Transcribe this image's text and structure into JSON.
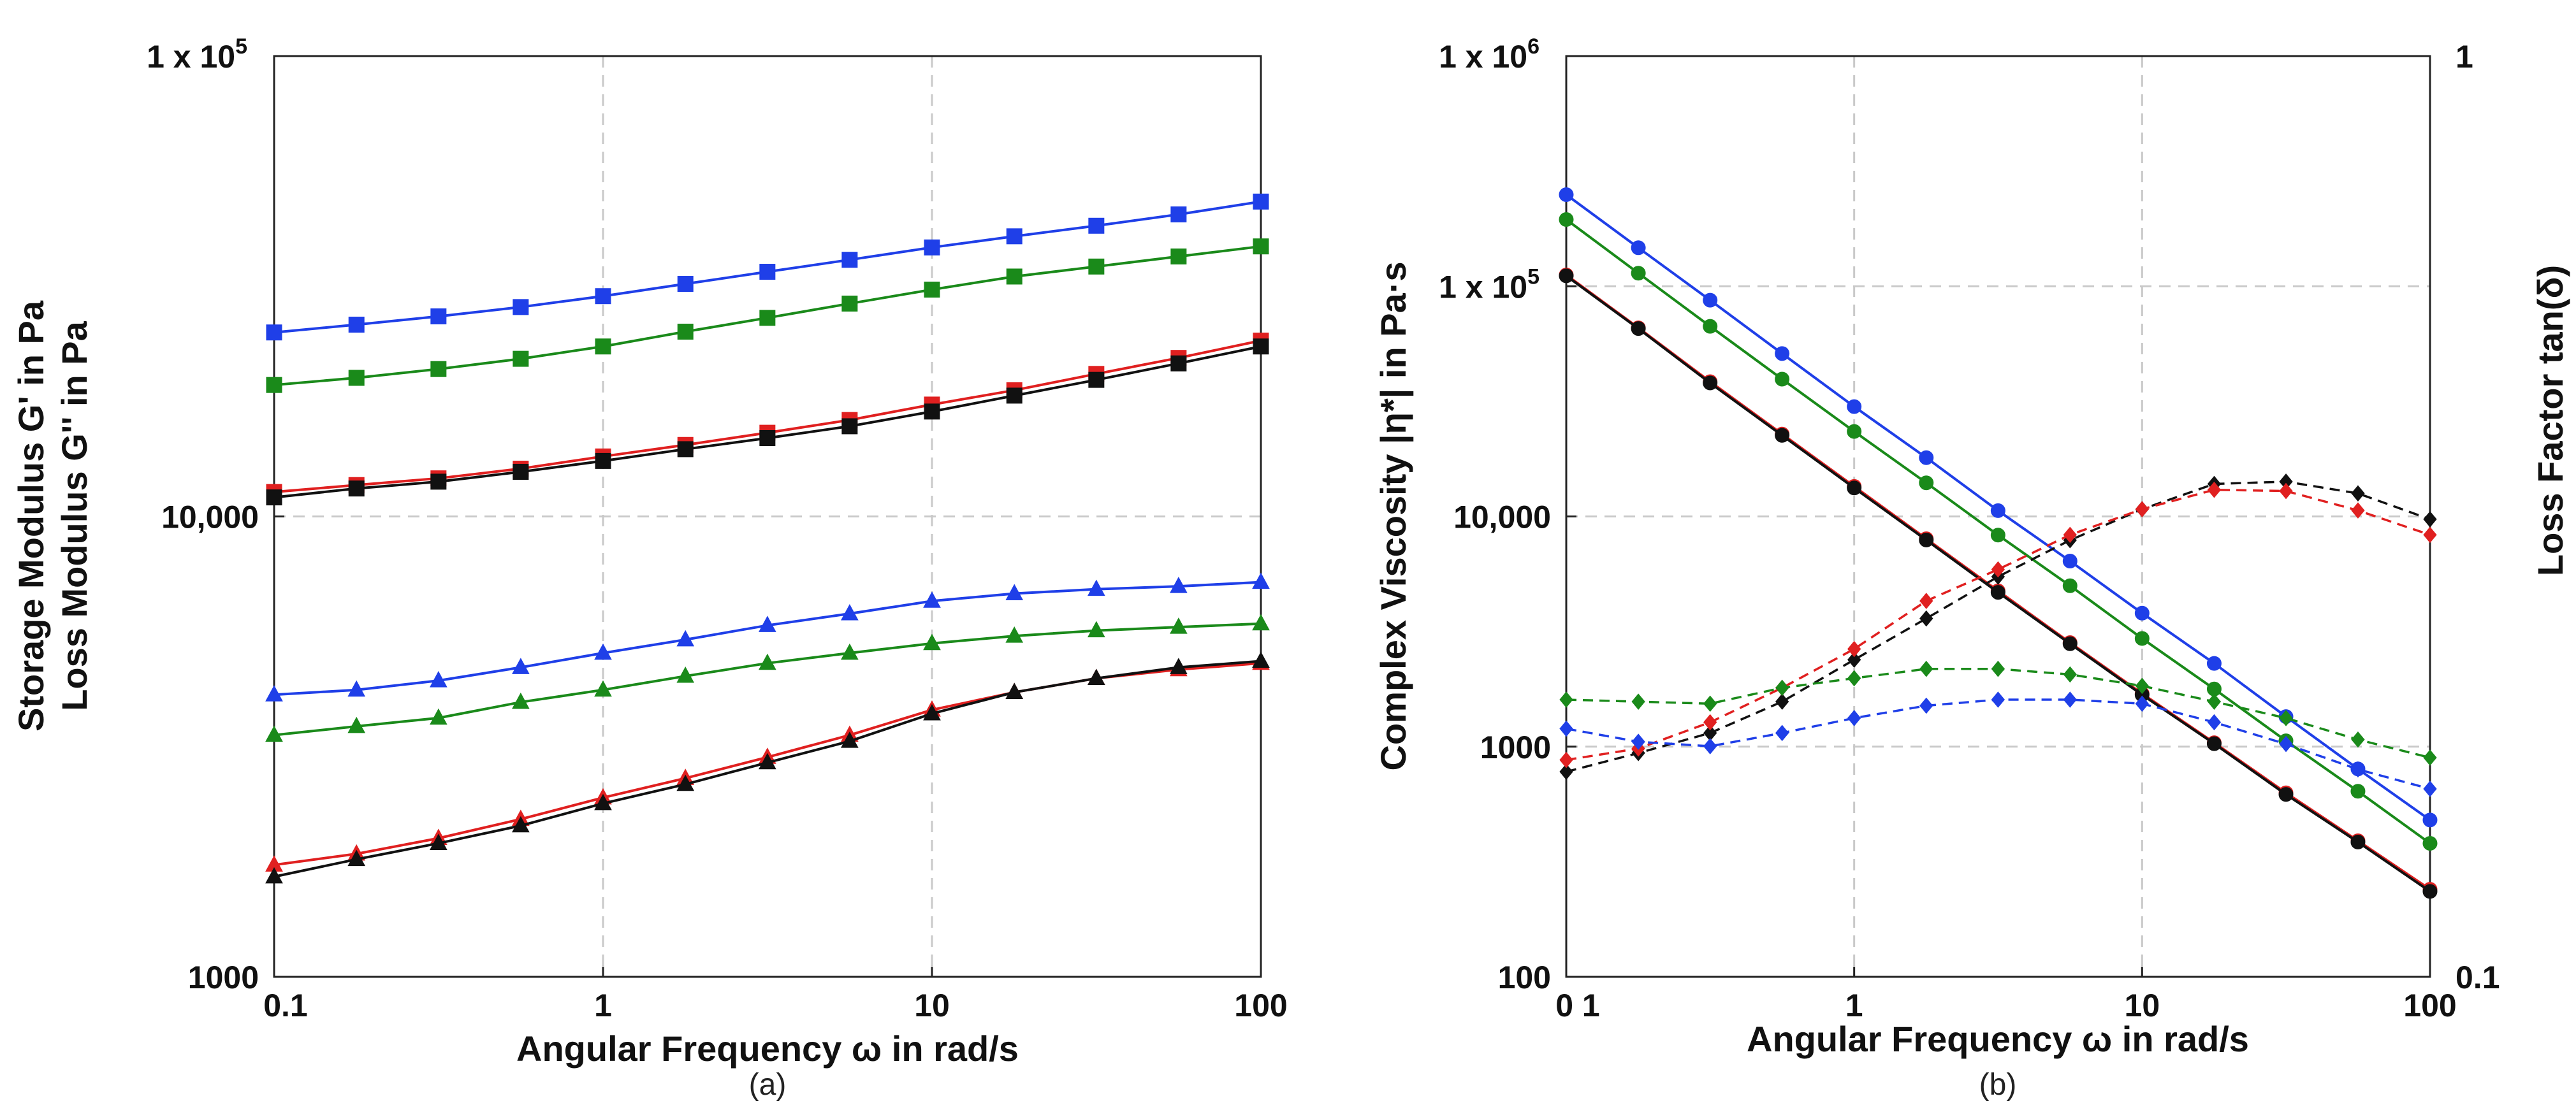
{
  "chart_data": [
    {
      "id": "a",
      "type": "line",
      "caption": "(a)",
      "xlabel": "Angular Frequency ω in rad/s",
      "ylabel": [
        "Storage Modulus G' in Pa",
        "Loss Modulus G'' in Pa"
      ],
      "xscale": "log",
      "yscale": "log",
      "xlim": [
        0.1,
        100
      ],
      "ylim": [
        1000,
        100000
      ],
      "x_ticks": [
        {
          "value": 0.1,
          "label": "0.1"
        },
        {
          "value": 1,
          "label": "1"
        },
        {
          "value": 10,
          "label": "10"
        },
        {
          "value": 100,
          "label": "100"
        }
      ],
      "y_ticks": [
        {
          "value": 1000,
          "label": "1000"
        },
        {
          "value": 10000,
          "label": "10,000"
        },
        {
          "value": 100000,
          "label": "1 x 10",
          "exponent": "5"
        }
      ],
      "grid": true,
      "x": [
        0.1,
        0.178,
        0.316,
        0.562,
        1,
        1.78,
        3.16,
        5.62,
        10,
        17.8,
        31.6,
        56.2,
        100
      ],
      "series": [
        {
          "name": "G' blue",
          "color": "#1f3fe8",
          "marker": "square",
          "dashed": false,
          "values": [
            25100,
            26100,
            27200,
            28500,
            30100,
            32000,
            34000,
            36100,
            38400,
            40600,
            42800,
            45300,
            48300
          ]
        },
        {
          "name": "G' green",
          "color": "#1a8a1a",
          "marker": "square",
          "dashed": false,
          "values": [
            19300,
            20000,
            20900,
            22000,
            23400,
            25200,
            27000,
            29000,
            31100,
            33200,
            34900,
            36700,
            38600
          ]
        },
        {
          "name": "G' red",
          "color": "#e02020",
          "marker": "square",
          "dashed": false,
          "values": [
            11300,
            11700,
            12100,
            12700,
            13500,
            14300,
            15200,
            16200,
            17500,
            18800,
            20400,
            22100,
            24100
          ]
        },
        {
          "name": "G' black",
          "color": "#111111",
          "marker": "square",
          "dashed": false,
          "values": [
            11000,
            11500,
            11900,
            12500,
            13200,
            14000,
            14800,
            15700,
            16900,
            18300,
            19800,
            21500,
            23400
          ]
        },
        {
          "name": "G'' blue",
          "color": "#1f3fe8",
          "marker": "triangle",
          "dashed": false,
          "values": [
            4100,
            4200,
            4400,
            4700,
            5050,
            5400,
            5800,
            6150,
            6550,
            6800,
            6950,
            7050,
            7200
          ]
        },
        {
          "name": "G'' green",
          "color": "#1a8a1a",
          "marker": "triangle",
          "dashed": false,
          "values": [
            3350,
            3500,
            3650,
            3950,
            4200,
            4500,
            4800,
            5050,
            5300,
            5500,
            5650,
            5750,
            5850
          ]
        },
        {
          "name": "G'' red",
          "color": "#e02020",
          "marker": "triangle",
          "dashed": false,
          "values": [
            1750,
            1850,
            2000,
            2200,
            2450,
            2700,
            3000,
            3350,
            3800,
            4150,
            4450,
            4650,
            4800
          ]
        },
        {
          "name": "G'' black",
          "color": "#111111",
          "marker": "triangle",
          "dashed": false,
          "values": [
            1650,
            1800,
            1950,
            2130,
            2380,
            2620,
            2920,
            3250,
            3730,
            4150,
            4450,
            4700,
            4850
          ]
        }
      ]
    },
    {
      "id": "b",
      "type": "line",
      "caption": "(b)",
      "xlabel": "Angular Frequency ω in rad/s",
      "ylabel": "Complex Viscosity |η*| in Pa·s",
      "y2label": "Loss Factor tan(δ)",
      "xscale": "log",
      "yscale": "log",
      "y2scale": "log",
      "xlim": [
        0.1,
        100
      ],
      "ylim": [
        100,
        1000000
      ],
      "y2lim": [
        0.1,
        1
      ],
      "x_ticks": [
        {
          "value": 0.1,
          "label": "0 1"
        },
        {
          "value": 1,
          "label": "1"
        },
        {
          "value": 10,
          "label": "10"
        },
        {
          "value": 100,
          "label": "100"
        }
      ],
      "y_ticks": [
        {
          "value": 100,
          "label": "100"
        },
        {
          "value": 1000,
          "label": "1000"
        },
        {
          "value": 10000,
          "label": "10,000"
        },
        {
          "value": 100000,
          "label": "1 x 10",
          "exponent": "5"
        },
        {
          "value": 1000000,
          "label": "1 x 10",
          "exponent": "6"
        }
      ],
      "y2_ticks": [
        {
          "value": 0.1,
          "label": "0.1"
        },
        {
          "value": 1,
          "label": "1"
        }
      ],
      "grid": true,
      "x": [
        0.1,
        0.178,
        0.316,
        0.562,
        1,
        1.78,
        3.16,
        5.62,
        10,
        17.8,
        31.6,
        56.2,
        100
      ],
      "series": [
        {
          "name": "|η*| blue",
          "color": "#1f3fe8",
          "marker": "circle",
          "dashed": false,
          "axis": "left",
          "values": [
            250000,
            147000,
            87000,
            51000,
            30000,
            18000,
            10600,
            6400,
            3800,
            2300,
            1350,
            800,
            480
          ]
        },
        {
          "name": "|η*| green",
          "color": "#1a8a1a",
          "marker": "circle",
          "dashed": false,
          "axis": "left",
          "values": [
            195000,
            114000,
            67000,
            39500,
            23400,
            14000,
            8300,
            5000,
            2950,
            1780,
            1060,
            640,
            380
          ]
        },
        {
          "name": "|η*| red",
          "color": "#e02020",
          "marker": "circle",
          "dashed": false,
          "axis": "left",
          "values": [
            112000,
            66000,
            38500,
            22800,
            13500,
            8000,
            4750,
            2830,
            1700,
            1040,
            630,
            390,
            240
          ]
        },
        {
          "name": "|η*| black",
          "color": "#111111",
          "marker": "circle",
          "dashed": false,
          "axis": "left",
          "values": [
            111000,
            65500,
            38000,
            22500,
            13300,
            7900,
            4680,
            2800,
            1680,
            1030,
            620,
            385,
            235
          ]
        },
        {
          "name": "tanδ black",
          "color": "#111111",
          "marker": "diamond",
          "dashed": true,
          "axis": "right",
          "values": [
            0.167,
            0.175,
            0.184,
            0.199,
            0.221,
            0.245,
            0.272,
            0.298,
            0.322,
            0.343,
            0.345,
            0.335,
            0.314
          ]
        },
        {
          "name": "tanδ red",
          "color": "#e02020",
          "marker": "diamond",
          "dashed": true,
          "axis": "right",
          "values": [
            0.172,
            0.177,
            0.189,
            0.206,
            0.227,
            0.256,
            0.277,
            0.302,
            0.322,
            0.338,
            0.337,
            0.321,
            0.302
          ]
        },
        {
          "name": "tanδ green",
          "color": "#1a8a1a",
          "marker": "diamond",
          "dashed": true,
          "axis": "right",
          "values": [
            0.2,
            0.199,
            0.198,
            0.206,
            0.211,
            0.216,
            0.216,
            0.213,
            0.207,
            0.199,
            0.191,
            0.181,
            0.173
          ]
        },
        {
          "name": "tanδ blue",
          "color": "#1f3fe8",
          "marker": "diamond",
          "dashed": true,
          "axis": "right",
          "values": [
            0.186,
            0.18,
            0.178,
            0.184,
            0.191,
            0.197,
            0.2,
            0.2,
            0.198,
            0.189,
            0.179,
            0.168,
            0.16
          ]
        }
      ]
    }
  ]
}
